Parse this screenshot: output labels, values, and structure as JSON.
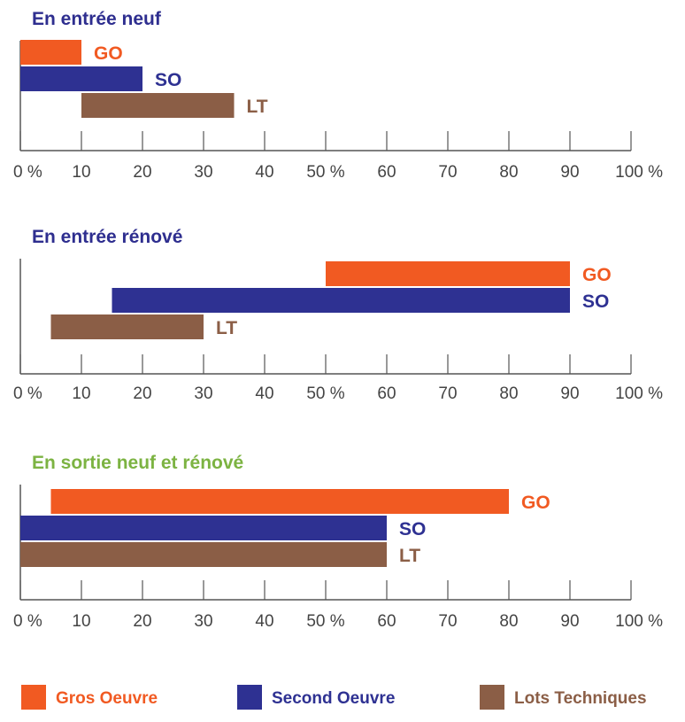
{
  "chart_data": [
    {
      "type": "bar",
      "orientation": "horizontal",
      "floating": true,
      "title": "En entrée neuf",
      "title_color": "#2e2e8f",
      "xlim": [
        0,
        100
      ],
      "categories": [
        "GO",
        "SO",
        "LT"
      ],
      "ranges": [
        [
          0,
          10
        ],
        [
          0,
          20
        ],
        [
          10,
          35
        ]
      ],
      "grid": false
    },
    {
      "type": "bar",
      "orientation": "horizontal",
      "floating": true,
      "title": "En entrée rénové",
      "title_color": "#2e2e8f",
      "xlim": [
        0,
        100
      ],
      "categories": [
        "GO",
        "SO",
        "LT"
      ],
      "ranges": [
        [
          50,
          90
        ],
        [
          15,
          90
        ],
        [
          5,
          30
        ]
      ],
      "grid": false
    },
    {
      "type": "bar",
      "orientation": "horizontal",
      "floating": true,
      "title": "En sortie neuf et rénové",
      "title_color": "#7cb342",
      "xlim": [
        0,
        100
      ],
      "categories": [
        "GO",
        "SO",
        "LT"
      ],
      "ranges": [
        [
          5,
          80
        ],
        [
          0,
          60
        ],
        [
          0,
          60
        ]
      ],
      "grid": false
    }
  ],
  "tick_labels": [
    "0 %",
    "10",
    "20",
    "30",
    "40",
    "50 %",
    "60",
    "70",
    "80",
    "90",
    "100 %"
  ],
  "colors": {
    "GO": "#f15a22",
    "SO": "#2e3192",
    "LT": "#8b5e46",
    "axis": "#555555"
  },
  "legend": [
    {
      "key": "GO",
      "label": "Gros Oeuvre"
    },
    {
      "key": "SO",
      "label": "Second Oeuvre"
    },
    {
      "key": "LT",
      "label": "Lots Techniques"
    }
  ]
}
